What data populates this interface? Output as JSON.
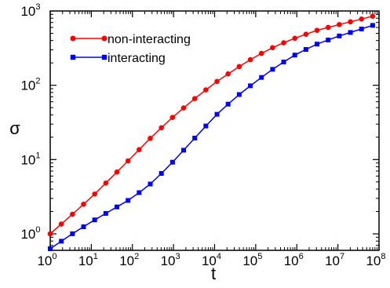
{
  "chart_data": {
    "type": "line",
    "title": "",
    "xlabel": "t",
    "ylabel": "σ",
    "x_scale": "log",
    "y_scale": "log",
    "xlim": [
      1,
      100000000
    ],
    "ylim": [
      0.6,
      1000
    ],
    "x_ticks": [
      {
        "base": "10",
        "exp": "0",
        "value": 1
      },
      {
        "base": "10",
        "exp": "1",
        "value": 10
      },
      {
        "base": "10",
        "exp": "2",
        "value": 100
      },
      {
        "base": "10",
        "exp": "3",
        "value": 1000
      },
      {
        "base": "10",
        "exp": "4",
        "value": 10000
      },
      {
        "base": "10",
        "exp": "5",
        "value": 100000
      },
      {
        "base": "10",
        "exp": "6",
        "value": 1000000
      },
      {
        "base": "10",
        "exp": "7",
        "value": 10000000
      },
      {
        "base": "10",
        "exp": "8",
        "value": 100000000
      }
    ],
    "y_ticks": [
      {
        "base": "10",
        "exp": "0",
        "value": 1
      },
      {
        "base": "10",
        "exp": "1",
        "value": 10
      },
      {
        "base": "10",
        "exp": "2",
        "value": 100
      },
      {
        "base": "10",
        "exp": "3",
        "value": 1000
      }
    ],
    "grid": false,
    "legend_position": "top-left",
    "series": [
      {
        "name": "non-interacting",
        "color": "#ff0000",
        "marker": "circle",
        "x": [
          1,
          3.16,
          10,
          31.6,
          100,
          316,
          1000,
          3160,
          10000,
          31600,
          100000,
          316000,
          1000000,
          3160000,
          10000000,
          31600000,
          70000000
        ],
        "y": [
          1.0,
          1.75,
          3.1,
          5.8,
          11.0,
          21.0,
          38.0,
          65.0,
          107,
          165,
          245,
          340,
          440,
          550,
          650,
          760,
          850
        ]
      },
      {
        "name": "interacting",
        "color": "#0000ff",
        "marker": "square",
        "x": [
          1,
          3.16,
          10,
          31.6,
          100,
          316,
          1000,
          3160,
          10000,
          31600,
          100000,
          316000,
          1000000,
          3160000,
          10000000,
          31600000,
          70000000
        ],
        "y": [
          0.63,
          0.97,
          1.45,
          2.1,
          3.05,
          5.0,
          9.5,
          19.0,
          38.0,
          68.0,
          112,
          178,
          265,
          360,
          455,
          555,
          640
        ]
      }
    ]
  }
}
